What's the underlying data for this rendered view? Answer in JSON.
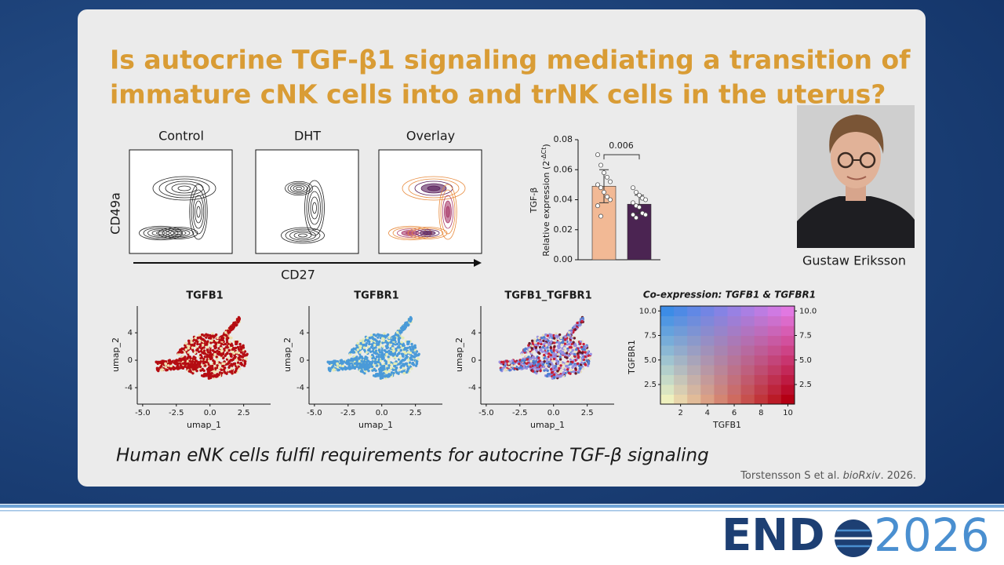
{
  "title": [
    "Is autocrine TGF-β1 signaling mediating a transition of",
    "immature cNK cells into and trNK cells in the uterus?"
  ],
  "flow_panels": {
    "titles": [
      "Control",
      "DHT",
      "Overlay"
    ],
    "ylabel": "CD49a",
    "xlabel": "CD27"
  },
  "chart_data": {
    "type": "bar",
    "ylabel": "TGF-β",
    "ylabel2": {
      "text": "Relative expression (2",
      "sup": "-ΔCt",
      "end": ")"
    },
    "categories": [
      null,
      null
    ],
    "values": [
      0.049,
      0.037
    ],
    "errors": [
      0.011,
      0.006
    ],
    "colors": [
      "#f2b995",
      "#4b2452"
    ],
    "points": [
      [
        0.07,
        0.063,
        0.058,
        0.055,
        0.052,
        0.05,
        0.048,
        0.045,
        0.042,
        0.04,
        0.036,
        0.029
      ],
      [
        0.048,
        0.045,
        0.043,
        0.041,
        0.04,
        0.038,
        0.036,
        0.035,
        0.031,
        0.03,
        0.03,
        0.028
      ]
    ],
    "annotation": "0.006",
    "ylim": [
      0,
      0.08
    ],
    "yticks": [
      {
        "value": 0,
        "label": "0.00"
      },
      {
        "value": 0.02,
        "label": "0.02"
      },
      {
        "value": 0.04,
        "label": "0.04"
      },
      {
        "value": 0.06,
        "label": "0.06"
      },
      {
        "value": 0.08,
        "label": "0.08"
      }
    ]
  },
  "photo_caption": "Gustaw Eriksson",
  "umaps": {
    "titles": [
      "TGFB1",
      "TGFBR1",
      "TGFB1_TGFBR1"
    ],
    "xlabel": "umap_1",
    "ylabel": "umap_2",
    "xlim": [
      -5.4,
      4.5
    ],
    "ylim": [
      -6.4,
      7.9
    ],
    "xticks": [
      {
        "value": -5,
        "label": "-5.0"
      },
      {
        "value": -2.5,
        "label": "-2.5"
      },
      {
        "value": 0,
        "label": "0.0"
      },
      {
        "value": 2.5,
        "label": "2.5"
      }
    ],
    "yticks": [
      4,
      0,
      -4
    ]
  },
  "heatmap": {
    "title": "Co-expression: TGFB1 & TGFBR1",
    "xlabel": "TGFB1",
    "ylabel": "TGFBR1",
    "xlim": [
      0.5,
      10.5
    ],
    "ylim": [
      0.5,
      10.5
    ],
    "xticks": [
      2,
      4,
      6,
      8,
      10
    ],
    "yticks": [
      2.5,
      5,
      7.5,
      10
    ],
    "ytick_labels": [
      "2.5",
      "5.0",
      "7.5",
      "10.0"
    ]
  },
  "footer_text": "Human eNK cells fulfil requirements for autocrine TGF-β signaling",
  "citation": {
    "authors": "Torstensson S et al. ",
    "journal": "bioRxiv",
    "year": ". 2026."
  },
  "logo": {
    "left": "END",
    "right": "2026"
  }
}
